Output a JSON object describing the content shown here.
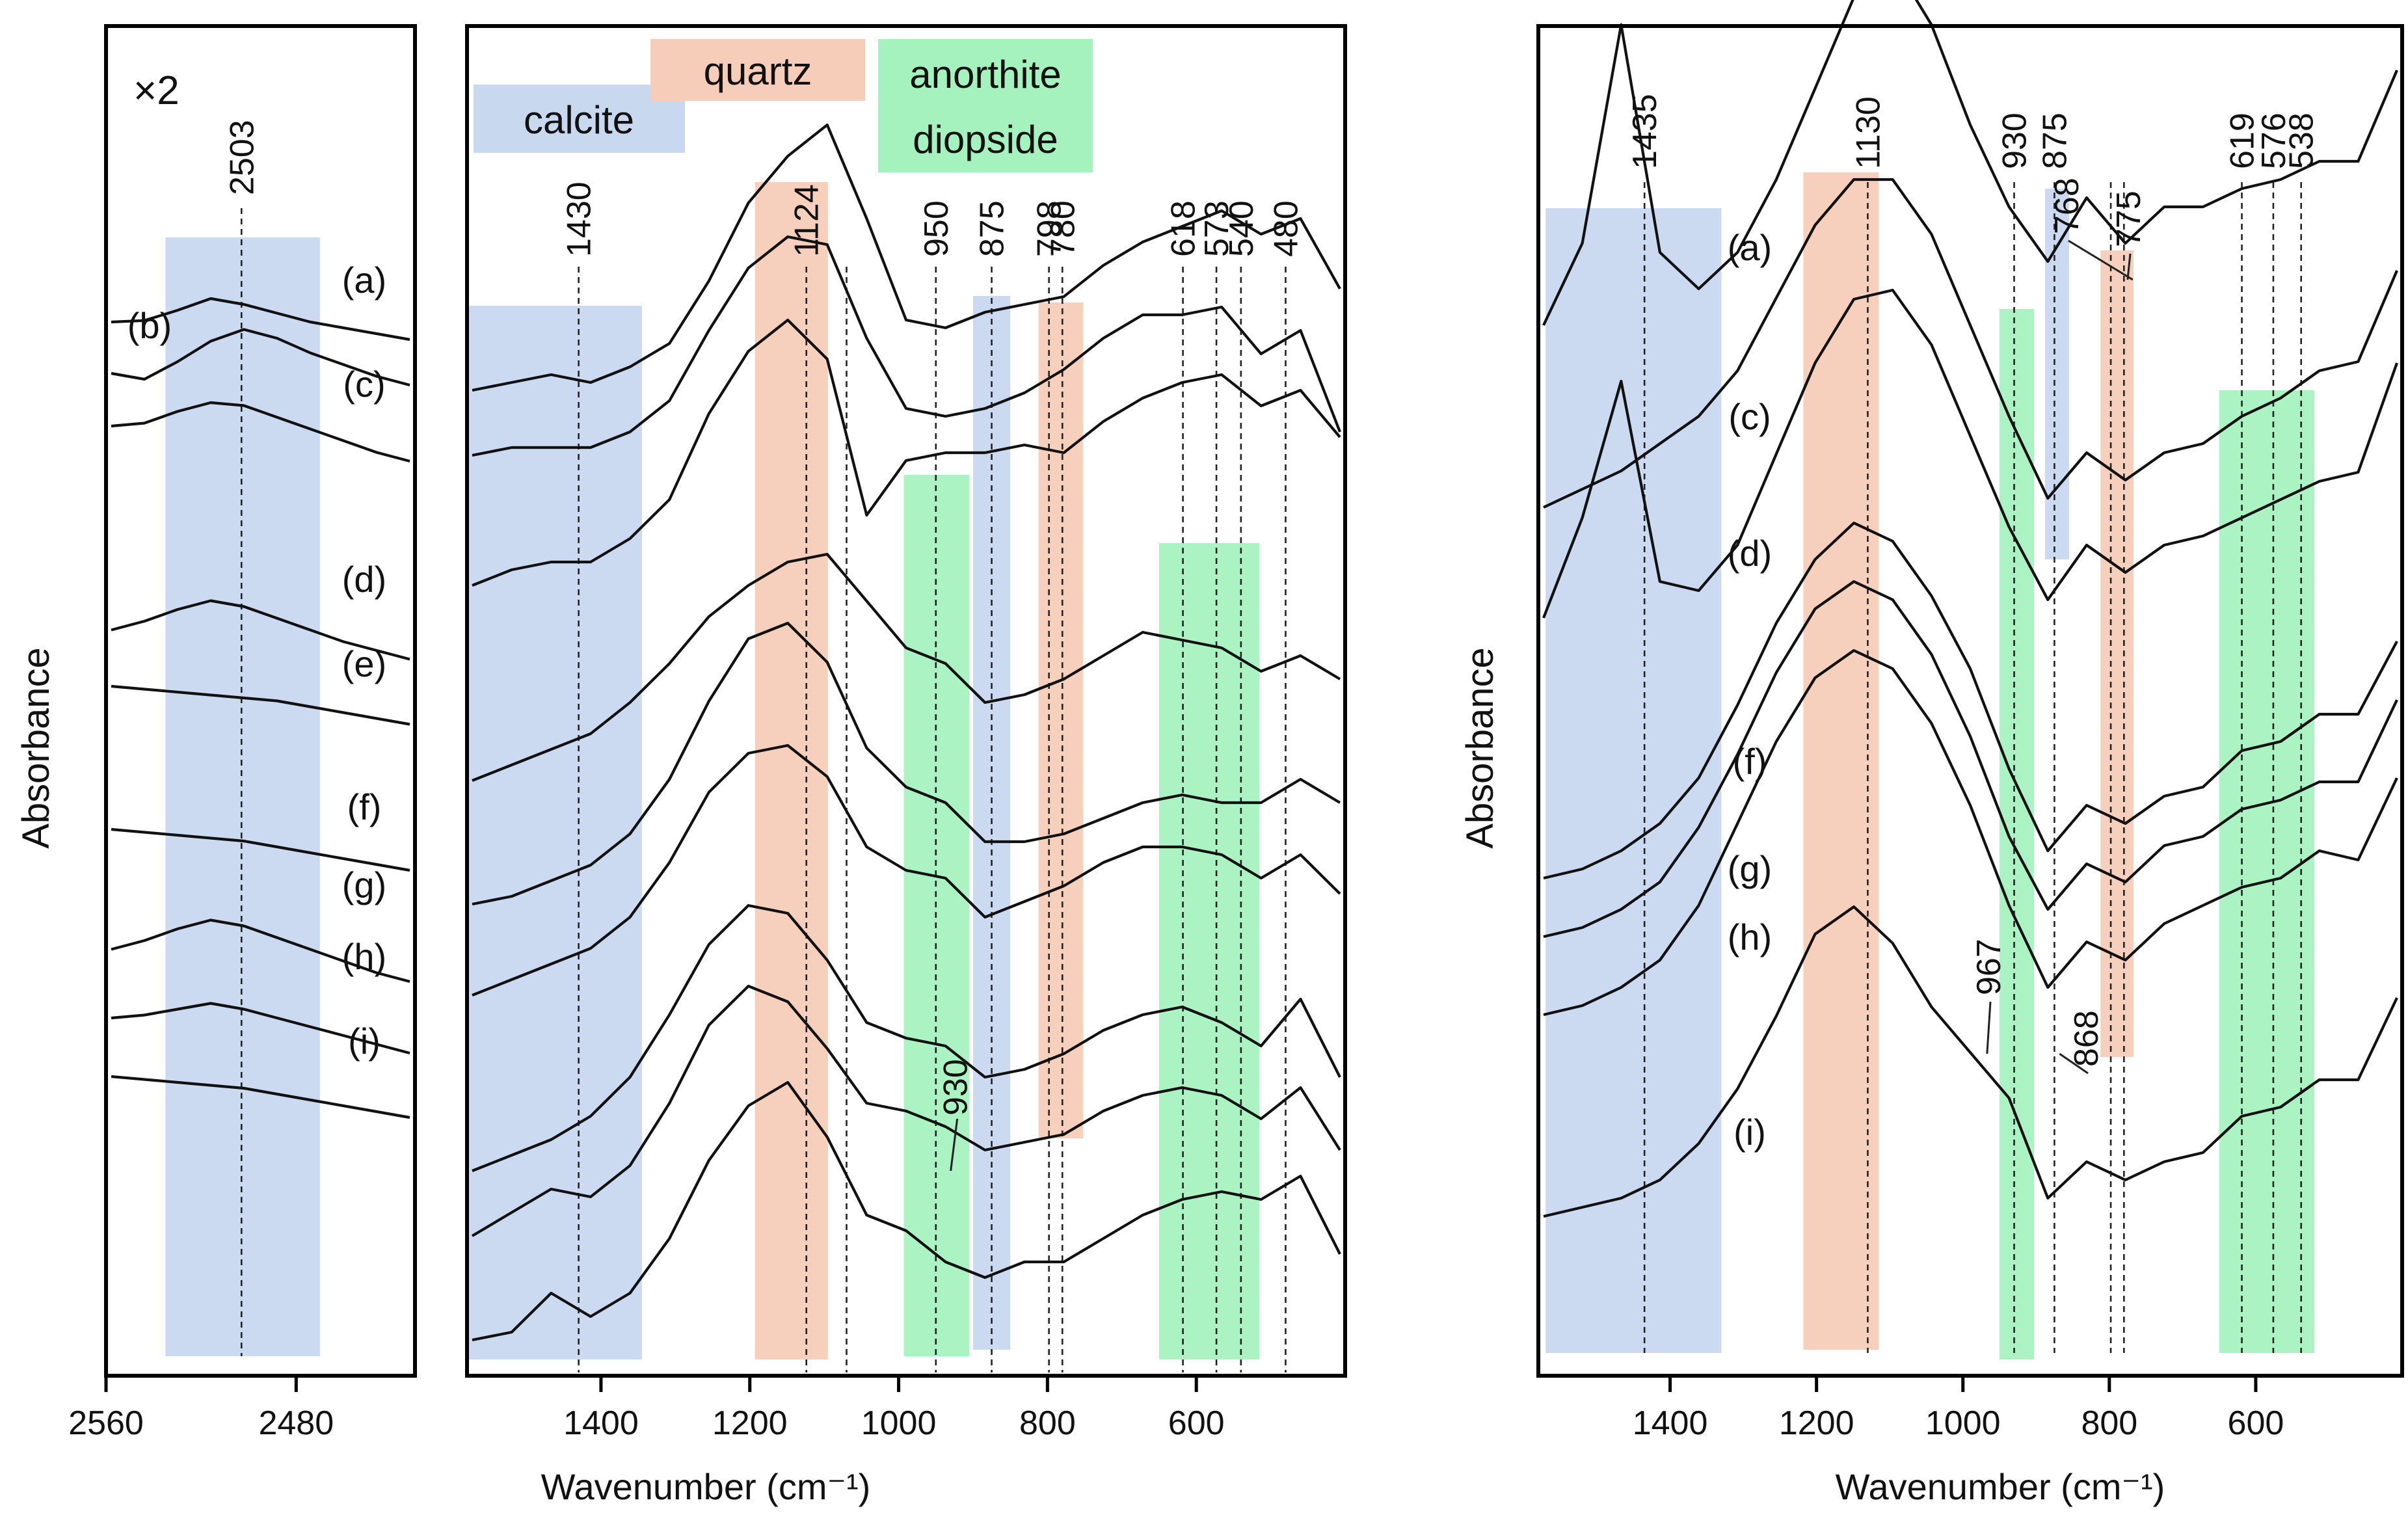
{
  "figure": {
    "y_axis_label": "Absorbance",
    "x_axis_label": "Wavenumber (cm⁻¹)",
    "scale_note": "×2",
    "colors": {
      "calcite": "#c8d8ef",
      "quartz": "#f6cdb8",
      "anorthite_diopside": "#a6f2bf",
      "line": "#111111"
    }
  },
  "chart_data": [
    {
      "type": "line",
      "panel": "left-a",
      "xlim": [
        2560,
        2430
      ],
      "xticks": [
        2560,
        2480
      ],
      "reference_lines": [
        {
          "x": 2503,
          "label": "2503"
        }
      ],
      "bands": [
        {
          "from": 2535,
          "to": 2470,
          "kind": "calcite"
        }
      ],
      "series": [
        {
          "name": "(a)",
          "values": [
            1,
            1.05,
            1.4,
            1.8,
            1.6,
            1.3,
            1.0,
            0.8,
            0.6,
            0.4
          ]
        },
        {
          "name": "(b)",
          "values": [
            0.8,
            0.6,
            1.2,
            1.9,
            2.3,
            2.0,
            1.5,
            1.1,
            0.7,
            0.4
          ]
        },
        {
          "name": "(c)",
          "values": [
            1,
            1.1,
            1.5,
            1.8,
            1.7,
            1.3,
            0.9,
            0.5,
            0.1,
            -0.2
          ]
        },
        {
          "name": "(d)",
          "values": [
            0.7,
            1.0,
            1.4,
            1.7,
            1.5,
            1.1,
            0.7,
            0.3,
            0.0,
            -0.3
          ]
        },
        {
          "name": "(e)",
          "values": [
            1.0,
            0.9,
            0.8,
            0.7,
            0.6,
            0.5,
            0.3,
            0.1,
            -0.1,
            -0.3
          ]
        },
        {
          "name": "(f)",
          "values": [
            1.0,
            0.9,
            0.8,
            0.7,
            0.6,
            0.4,
            0.2,
            0.0,
            -0.2,
            -0.4
          ]
        },
        {
          "name": "(g)",
          "values": [
            0.9,
            1.2,
            1.6,
            1.9,
            1.7,
            1.3,
            0.9,
            0.5,
            0.1,
            -0.2
          ]
        },
        {
          "name": "(h)",
          "values": [
            1.0,
            1.1,
            1.3,
            1.5,
            1.3,
            1.0,
            0.7,
            0.4,
            0.1,
            -0.2
          ]
        },
        {
          "name": "(i)",
          "values": [
            1.0,
            0.9,
            0.8,
            0.7,
            0.6,
            0.4,
            0.2,
            0.0,
            -0.2,
            -0.4
          ]
        }
      ]
    },
    {
      "type": "line",
      "panel": "left-b",
      "xlim": [
        1580,
        400
      ],
      "xticks": [
        1400,
        1200,
        1000,
        800,
        600
      ],
      "band_labels": {
        "calcite": "calcite",
        "quartz": "quartz",
        "anorthite": "anorthite",
        "diopside": "diopside"
      },
      "bands": [
        {
          "from": 1580,
          "to": 1345,
          "kind": "calcite"
        },
        {
          "from": 1193,
          "to": 1095,
          "kind": "quartz"
        },
        {
          "from": 993,
          "to": 905,
          "kind": "anorthite_diopside"
        },
        {
          "from": 900,
          "to": 850,
          "kind": "calcite"
        },
        {
          "from": 812,
          "to": 752,
          "kind": "quartz"
        },
        {
          "from": 650,
          "to": 515,
          "kind": "anorthite_diopside"
        }
      ],
      "reference_lines": [
        {
          "x": 1430,
          "label": "1430"
        },
        {
          "x": 1124,
          "label": "1124"
        },
        {
          "x": 1070,
          "label": ""
        },
        {
          "x": 950,
          "label": "950"
        },
        {
          "x": 875,
          "label": "875"
        },
        {
          "x": 798,
          "label": "798"
        },
        {
          "x": 780,
          "label": "780"
        },
        {
          "x": 618,
          "label": "618"
        },
        {
          "x": 573,
          "label": "573"
        },
        {
          "x": 540,
          "label": "540"
        },
        {
          "x": 480,
          "label": "480"
        }
      ],
      "annotation": {
        "x": 930,
        "label": "930"
      },
      "series": [
        {
          "name": "(a)",
          "values": [
            0.0,
            0.1,
            0.2,
            0.1,
            0.3,
            0.6,
            1.4,
            2.4,
            3.0,
            3.4,
            2.2,
            0.9,
            0.8,
            1.0,
            1.1,
            1.2,
            1.6,
            1.9,
            2.1,
            2.3,
            2.0,
            2.2,
            1.3
          ]
        },
        {
          "name": "(b)",
          "values": [
            0.0,
            0.1,
            0.1,
            0.1,
            0.3,
            0.7,
            1.6,
            2.4,
            2.8,
            2.7,
            1.5,
            0.6,
            0.5,
            0.6,
            0.8,
            1.1,
            1.5,
            1.8,
            1.8,
            1.9,
            1.3,
            1.6,
            0.3
          ]
        },
        {
          "name": "(c)",
          "values": [
            0.0,
            0.2,
            0.3,
            0.3,
            0.6,
            1.1,
            2.2,
            3.0,
            3.4,
            2.9,
            0.9,
            1.6,
            1.7,
            1.7,
            1.8,
            1.7,
            2.1,
            2.4,
            2.6,
            2.7,
            2.3,
            2.5,
            1.9
          ]
        },
        {
          "name": "(d)",
          "values": [
            0.0,
            0.2,
            0.4,
            0.6,
            1.0,
            1.5,
            2.1,
            2.5,
            2.8,
            2.9,
            2.3,
            1.7,
            1.5,
            1.0,
            1.1,
            1.3,
            1.6,
            1.9,
            1.8,
            1.7,
            1.4,
            1.6,
            1.3
          ]
        },
        {
          "name": "(e)",
          "values": [
            0.0,
            0.1,
            0.3,
            0.5,
            0.9,
            1.6,
            2.6,
            3.4,
            3.6,
            3.1,
            2.0,
            1.5,
            1.3,
            0.8,
            0.8,
            0.9,
            1.1,
            1.3,
            1.4,
            1.3,
            1.3,
            1.6,
            1.3
          ]
        },
        {
          "name": "(f)",
          "values": [
            0.0,
            0.2,
            0.4,
            0.6,
            1.0,
            1.7,
            2.6,
            3.1,
            3.2,
            2.8,
            1.9,
            1.6,
            1.5,
            1.0,
            1.2,
            1.4,
            1.7,
            1.9,
            1.9,
            1.8,
            1.5,
            1.8,
            1.3
          ]
        },
        {
          "name": "(g)",
          "values": [
            0.0,
            0.2,
            0.4,
            0.7,
            1.2,
            2.0,
            2.9,
            3.4,
            3.3,
            2.7,
            1.9,
            1.7,
            1.6,
            1.2,
            1.3,
            1.5,
            1.8,
            2.0,
            2.1,
            1.9,
            1.6,
            2.2,
            1.2
          ]
        },
        {
          "name": "(h)",
          "values": [
            0.0,
            0.3,
            0.6,
            0.5,
            0.9,
            1.7,
            2.7,
            3.2,
            3.0,
            2.4,
            1.7,
            1.6,
            1.4,
            1.1,
            1.2,
            1.3,
            1.6,
            1.8,
            1.9,
            1.8,
            1.5,
            1.9,
            1.1
          ]
        },
        {
          "name": "(i)",
          "values": [
            0.0,
            0.1,
            0.6,
            0.3,
            0.6,
            1.3,
            2.3,
            3.0,
            3.3,
            2.6,
            1.6,
            1.4,
            1.0,
            0.8,
            1.0,
            1.0,
            1.3,
            1.6,
            1.8,
            1.9,
            1.8,
            2.1,
            1.1
          ]
        }
      ]
    },
    {
      "type": "line",
      "panel": "right",
      "xlim": [
        1580,
        400
      ],
      "xticks": [
        1400,
        1200,
        1000,
        800,
        600
      ],
      "bands": [
        {
          "from": 1570,
          "to": 1330,
          "kind": "calcite"
        },
        {
          "from": 1218,
          "to": 1115,
          "kind": "quartz"
        },
        {
          "from": 950,
          "to": 903,
          "kind": "anorthite_diopside"
        },
        {
          "from": 888,
          "to": 855,
          "kind": "calcite"
        },
        {
          "from": 812,
          "to": 767,
          "kind": "quartz"
        },
        {
          "from": 650,
          "to": 520,
          "kind": "anorthite_diopside"
        }
      ],
      "reference_lines": [
        {
          "x": 1435,
          "label": "1435"
        },
        {
          "x": 1130,
          "label": "1130"
        },
        {
          "x": 930,
          "label": "930"
        },
        {
          "x": 875,
          "label": "875"
        },
        {
          "x": 798,
          "label": ""
        },
        {
          "x": 780,
          "label": ""
        },
        {
          "x": 619,
          "label": "619"
        },
        {
          "x": 576,
          "label": "576"
        },
        {
          "x": 538,
          "label": "538"
        }
      ],
      "leader_labels": [
        {
          "x": 768,
          "label": "768"
        },
        {
          "x": 775,
          "label": "775"
        },
        {
          "x": 967,
          "label": "967"
        },
        {
          "x": 868,
          "label": "868"
        }
      ],
      "series": [
        {
          "name": "(a)",
          "values": [
            0.0,
            0.9,
            3.3,
            0.8,
            0.4,
            0.8,
            1.6,
            2.6,
            3.6,
            4.0,
            3.3,
            2.2,
            1.3,
            0.7,
            1.4,
            0.9,
            1.3,
            1.3,
            1.5,
            1.6,
            1.8,
            1.8,
            2.8
          ]
        },
        {
          "name": "(c)",
          "values": [
            0.0,
            0.2,
            0.4,
            0.7,
            1.0,
            1.5,
            2.3,
            3.1,
            3.6,
            3.6,
            3.0,
            2.0,
            1.0,
            0.1,
            0.6,
            0.3,
            0.6,
            0.7,
            1.0,
            1.2,
            1.5,
            1.6,
            2.6
          ]
        },
        {
          "name": "(d)",
          "values": [
            0.0,
            1.1,
            2.6,
            0.4,
            0.3,
            0.8,
            1.8,
            2.8,
            3.5,
            3.6,
            3.0,
            2.0,
            1.0,
            0.2,
            0.8,
            0.5,
            0.8,
            0.9,
            1.1,
            1.3,
            1.5,
            1.6,
            2.8
          ]
        },
        {
          "name": "(f)",
          "values": [
            0.0,
            0.1,
            0.3,
            0.6,
            1.1,
            1.9,
            2.8,
            3.5,
            3.9,
            3.7,
            3.1,
            2.3,
            1.2,
            0.3,
            0.8,
            0.6,
            0.9,
            1.0,
            1.4,
            1.5,
            1.8,
            1.8,
            2.6
          ]
        },
        {
          "name": "(g)",
          "values": [
            0.0,
            0.1,
            0.3,
            0.6,
            1.2,
            2.0,
            2.9,
            3.6,
            3.9,
            3.7,
            3.1,
            2.2,
            1.1,
            0.3,
            0.8,
            0.6,
            1.0,
            1.1,
            1.4,
            1.5,
            1.7,
            1.7,
            2.6
          ]
        },
        {
          "name": "(h)",
          "values": [
            0.0,
            0.1,
            0.3,
            0.6,
            1.2,
            2.1,
            3.0,
            3.7,
            4.0,
            3.8,
            3.2,
            2.3,
            1.2,
            0.3,
            0.8,
            0.6,
            1.0,
            1.2,
            1.4,
            1.5,
            1.8,
            1.7,
            2.6
          ]
        },
        {
          "name": "(i)",
          "values": [
            0.0,
            0.1,
            0.2,
            0.4,
            0.8,
            1.4,
            2.2,
            3.1,
            3.4,
            3.0,
            2.3,
            1.8,
            1.3,
            0.2,
            0.6,
            0.4,
            0.6,
            0.7,
            1.1,
            1.2,
            1.5,
            1.5,
            2.4
          ]
        }
      ]
    }
  ]
}
